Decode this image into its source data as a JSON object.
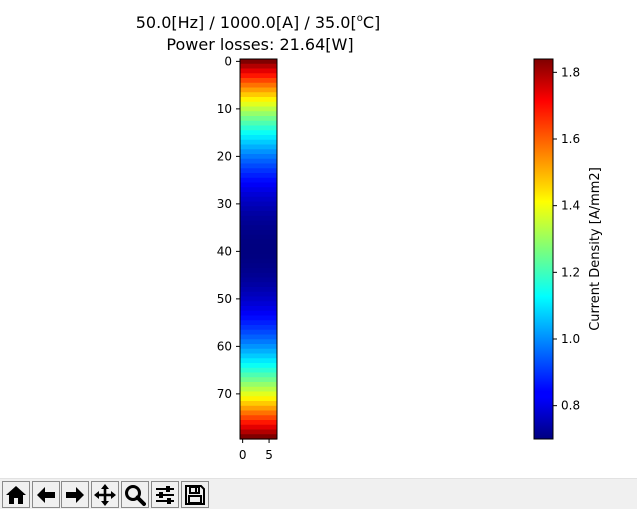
{
  "figure": {
    "title_line1": "50.0[Hz] / 1000.0[A] / 35.0[",
    "title_degree": "o",
    "title_line1_end": "C]",
    "title_line2": "Power losses: 21.64[W]"
  },
  "chart_data": {
    "type": "heatmap",
    "colormap": "jet",
    "title": "50.0[Hz] / 1000.0[A] / 35.0[°C] Power losses: 21.64[W]",
    "grid": false,
    "y_axis": {
      "direction": "top-to-bottom",
      "range": [
        0,
        80
      ],
      "ticks": [
        0,
        10,
        20,
        30,
        40,
        50,
        60,
        70
      ]
    },
    "x_axis": {
      "range": [
        0,
        7
      ],
      "ticks": [
        0,
        5
      ]
    },
    "colorbar": {
      "label": "Current Density [A/mm2]",
      "range": [
        0.7,
        1.84
      ],
      "ticks": [
        0.8,
        1.0,
        1.2,
        1.4,
        1.6,
        1.8
      ],
      "tick_labels": [
        "0.8",
        "1.0",
        "1.2",
        "1.4",
        "1.6",
        "1.8"
      ]
    },
    "profile_description_values": {
      "row_count": 80,
      "center_row": 39.5,
      "min_value": 0.7,
      "max_value": 1.84
    }
  },
  "toolbar": {
    "buttons": [
      {
        "name": "home-icon"
      },
      {
        "name": "back-arrow-icon"
      },
      {
        "name": "forward-arrow-icon"
      },
      {
        "name": "pan-icon"
      },
      {
        "name": "zoom-icon"
      },
      {
        "name": "configure-subplots-icon"
      },
      {
        "name": "save-icon"
      }
    ]
  }
}
